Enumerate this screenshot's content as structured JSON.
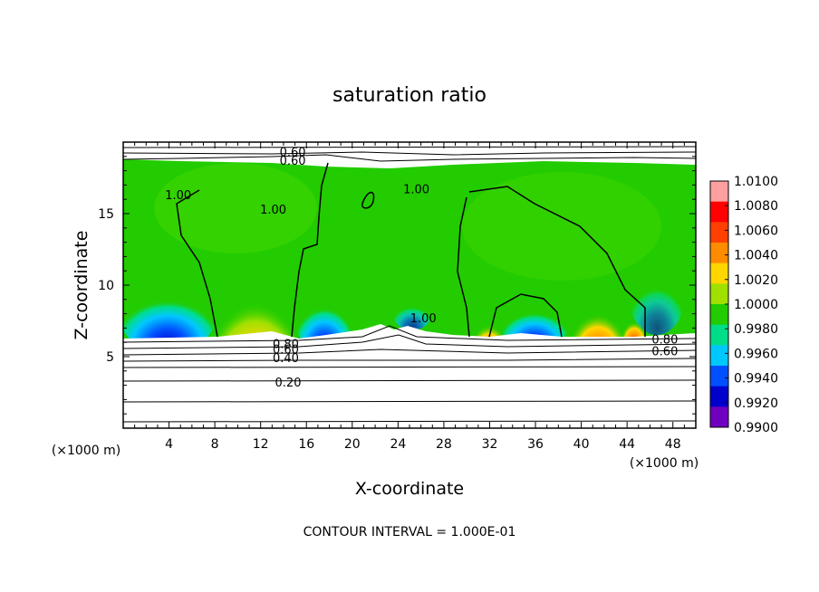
{
  "chart_data": {
    "type": "heatmap",
    "title": "saturation ratio",
    "xlabel": "X-coordinate",
    "ylabel": "Z-coordinate",
    "x_unit": "(×1000 m)",
    "footer": "CONTOUR INTERVAL = 1.000E-01",
    "xlim": [
      0,
      50
    ],
    "ylim": [
      0,
      20
    ],
    "x_ticks": [
      4,
      8,
      12,
      16,
      20,
      24,
      28,
      32,
      36,
      40,
      44,
      48
    ],
    "y_ticks": [
      5,
      10,
      15
    ],
    "colorbar": {
      "levels": [
        "1.0100",
        "1.0080",
        "1.0060",
        "1.0040",
        "1.0020",
        "1.0000",
        "0.9980",
        "0.9960",
        "0.9940",
        "0.9920",
        "0.9900"
      ],
      "colors": [
        "#ffa0a0",
        "#ff0000",
        "#ff4000",
        "#ff8c00",
        "#ffd700",
        "#a0e000",
        "#22cc00",
        "#00dd88",
        "#00c8ff",
        "#0050ff",
        "#0000cc",
        "#7000c0"
      ]
    },
    "contour_labels": [
      {
        "text": "0.60",
        "x": 14.8,
        "y": 19.2
      },
      {
        "text": "0.60",
        "x": 14.8,
        "y": 18.6
      },
      {
        "text": "1.00",
        "x": 4.8,
        "y": 16.2
      },
      {
        "text": "1.00",
        "x": 13.1,
        "y": 15.2
      },
      {
        "text": "1.00",
        "x": 25.6,
        "y": 16.6
      },
      {
        "text": "1.00",
        "x": 26.2,
        "y": 7.6
      },
      {
        "text": "0.80",
        "x": 14.2,
        "y": 5.8
      },
      {
        "text": "0.60",
        "x": 14.2,
        "y": 5.4
      },
      {
        "text": "0.40",
        "x": 14.2,
        "y": 4.8
      },
      {
        "text": "0.20",
        "x": 14.4,
        "y": 3.1
      },
      {
        "text": "0.80",
        "x": 47.3,
        "y": 6.1
      },
      {
        "text": "0.60",
        "x": 47.3,
        "y": 5.3
      }
    ]
  }
}
